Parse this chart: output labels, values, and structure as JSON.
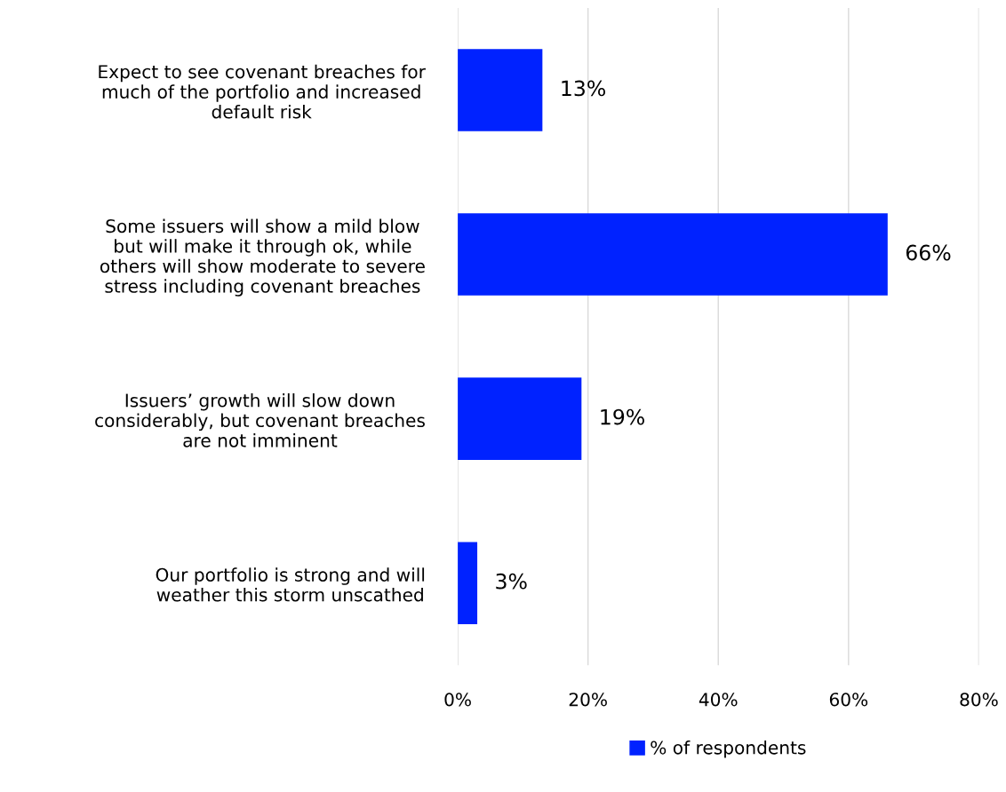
{
  "chart_data": {
    "type": "bar",
    "orientation": "horizontal",
    "categories": [
      "Expect to see covenant breaches for\nmuch of the portfolio and increased\ndefault risk",
      "Some issuers will show a mild blow\nbut will make it through ok, while\nothers will show moderate to severe\nstress including covenant breaches",
      "Issuers’ growth will slow down\nconsiderably, but covenant breaches\nare not imminent",
      "Our portfolio is strong and will\nweather this storm unscathed"
    ],
    "series": [
      {
        "name": "% of respondents",
        "color": "#0022ff",
        "values": [
          13,
          66,
          19,
          3
        ],
        "value_labels": [
          "13%",
          "66%",
          "19%",
          "3%"
        ]
      }
    ],
    "xlim": [
      0,
      80
    ],
    "xticks": [
      {
        "value": 0,
        "label": "0%"
      },
      {
        "value": 20,
        "label": "20%"
      },
      {
        "value": 40,
        "label": "40%"
      },
      {
        "value": 60,
        "label": "60%"
      },
      {
        "value": 80,
        "label": "80%"
      }
    ],
    "grid": "x",
    "legend": "bottom"
  }
}
